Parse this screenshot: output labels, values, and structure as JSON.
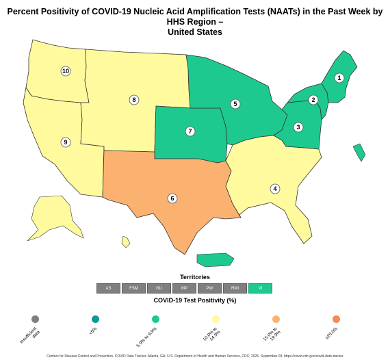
{
  "title": {
    "line1": "Percent Positivity of COVID-19 Nucleic Acid Amplification Tests (NAATs) in the Past Week by HHS Region –",
    "line2": "United States"
  },
  "colors": {
    "insufficient": "#7f7f7f",
    "lt5": "#14978f",
    "p5_9": "#1ec98f",
    "p10_14": "#fffa9e",
    "p15_19": "#fbb271",
    "ge20": "#f58a52",
    "border": "#333333"
  },
  "regions": [
    {
      "id": "1",
      "category": "5.0% to 9.9%"
    },
    {
      "id": "2",
      "category": "5.0% to 9.9%"
    },
    {
      "id": "3",
      "category": "5.0% to 9.9%"
    },
    {
      "id": "4",
      "category": "10.0% to 14.9%"
    },
    {
      "id": "5",
      "category": "5.0% to 9.9%"
    },
    {
      "id": "6",
      "category": "15.0% to 19.9%"
    },
    {
      "id": "7",
      "category": "5.0% to 9.9%"
    },
    {
      "id": "8",
      "category": "10.0% to 14.9%"
    },
    {
      "id": "9",
      "category": "10.0% to 14.9%"
    },
    {
      "id": "10",
      "category": "10.0% to 14.9%"
    }
  ],
  "territories": {
    "title": "Territories",
    "items": [
      {
        "label": "AS",
        "category": "Insufficient data"
      },
      {
        "label": "FSM",
        "category": "Insufficient data"
      },
      {
        "label": "GU",
        "category": "Insufficient data"
      },
      {
        "label": "MP",
        "category": "Insufficient data"
      },
      {
        "label": "PW",
        "category": "Insufficient data"
      },
      {
        "label": "RMI",
        "category": "Insufficient data"
      },
      {
        "label": "VI",
        "category": "5.0% to 9.9%"
      }
    ]
  },
  "legend": {
    "title": "COVID-19 Test Positivity (%)",
    "items": [
      {
        "label1": "Insufficient",
        "label2": "data",
        "color": "#7f7f7f"
      },
      {
        "label1": "<5%",
        "label2": "",
        "color": "#14978f"
      },
      {
        "label1": "5.0% to 9.9%",
        "label2": "",
        "color": "#1ec98f"
      },
      {
        "label1": "10.0% to",
        "label2": "14.9%",
        "color": "#fffa9e"
      },
      {
        "label1": "15.0% to",
        "label2": "19.9%",
        "color": "#fbb271"
      },
      {
        "label1": "≥20.0%",
        "label2": "",
        "color": "#f58a52"
      }
    ]
  },
  "footer": "Centers for Disease Control and Prevention. COVID Data Tracker. Atlanta, GA: U.S. Department of Health and Human Services, CDC; 2025, September 03. https://covid.cdc.gov/covid-data-tracker"
}
